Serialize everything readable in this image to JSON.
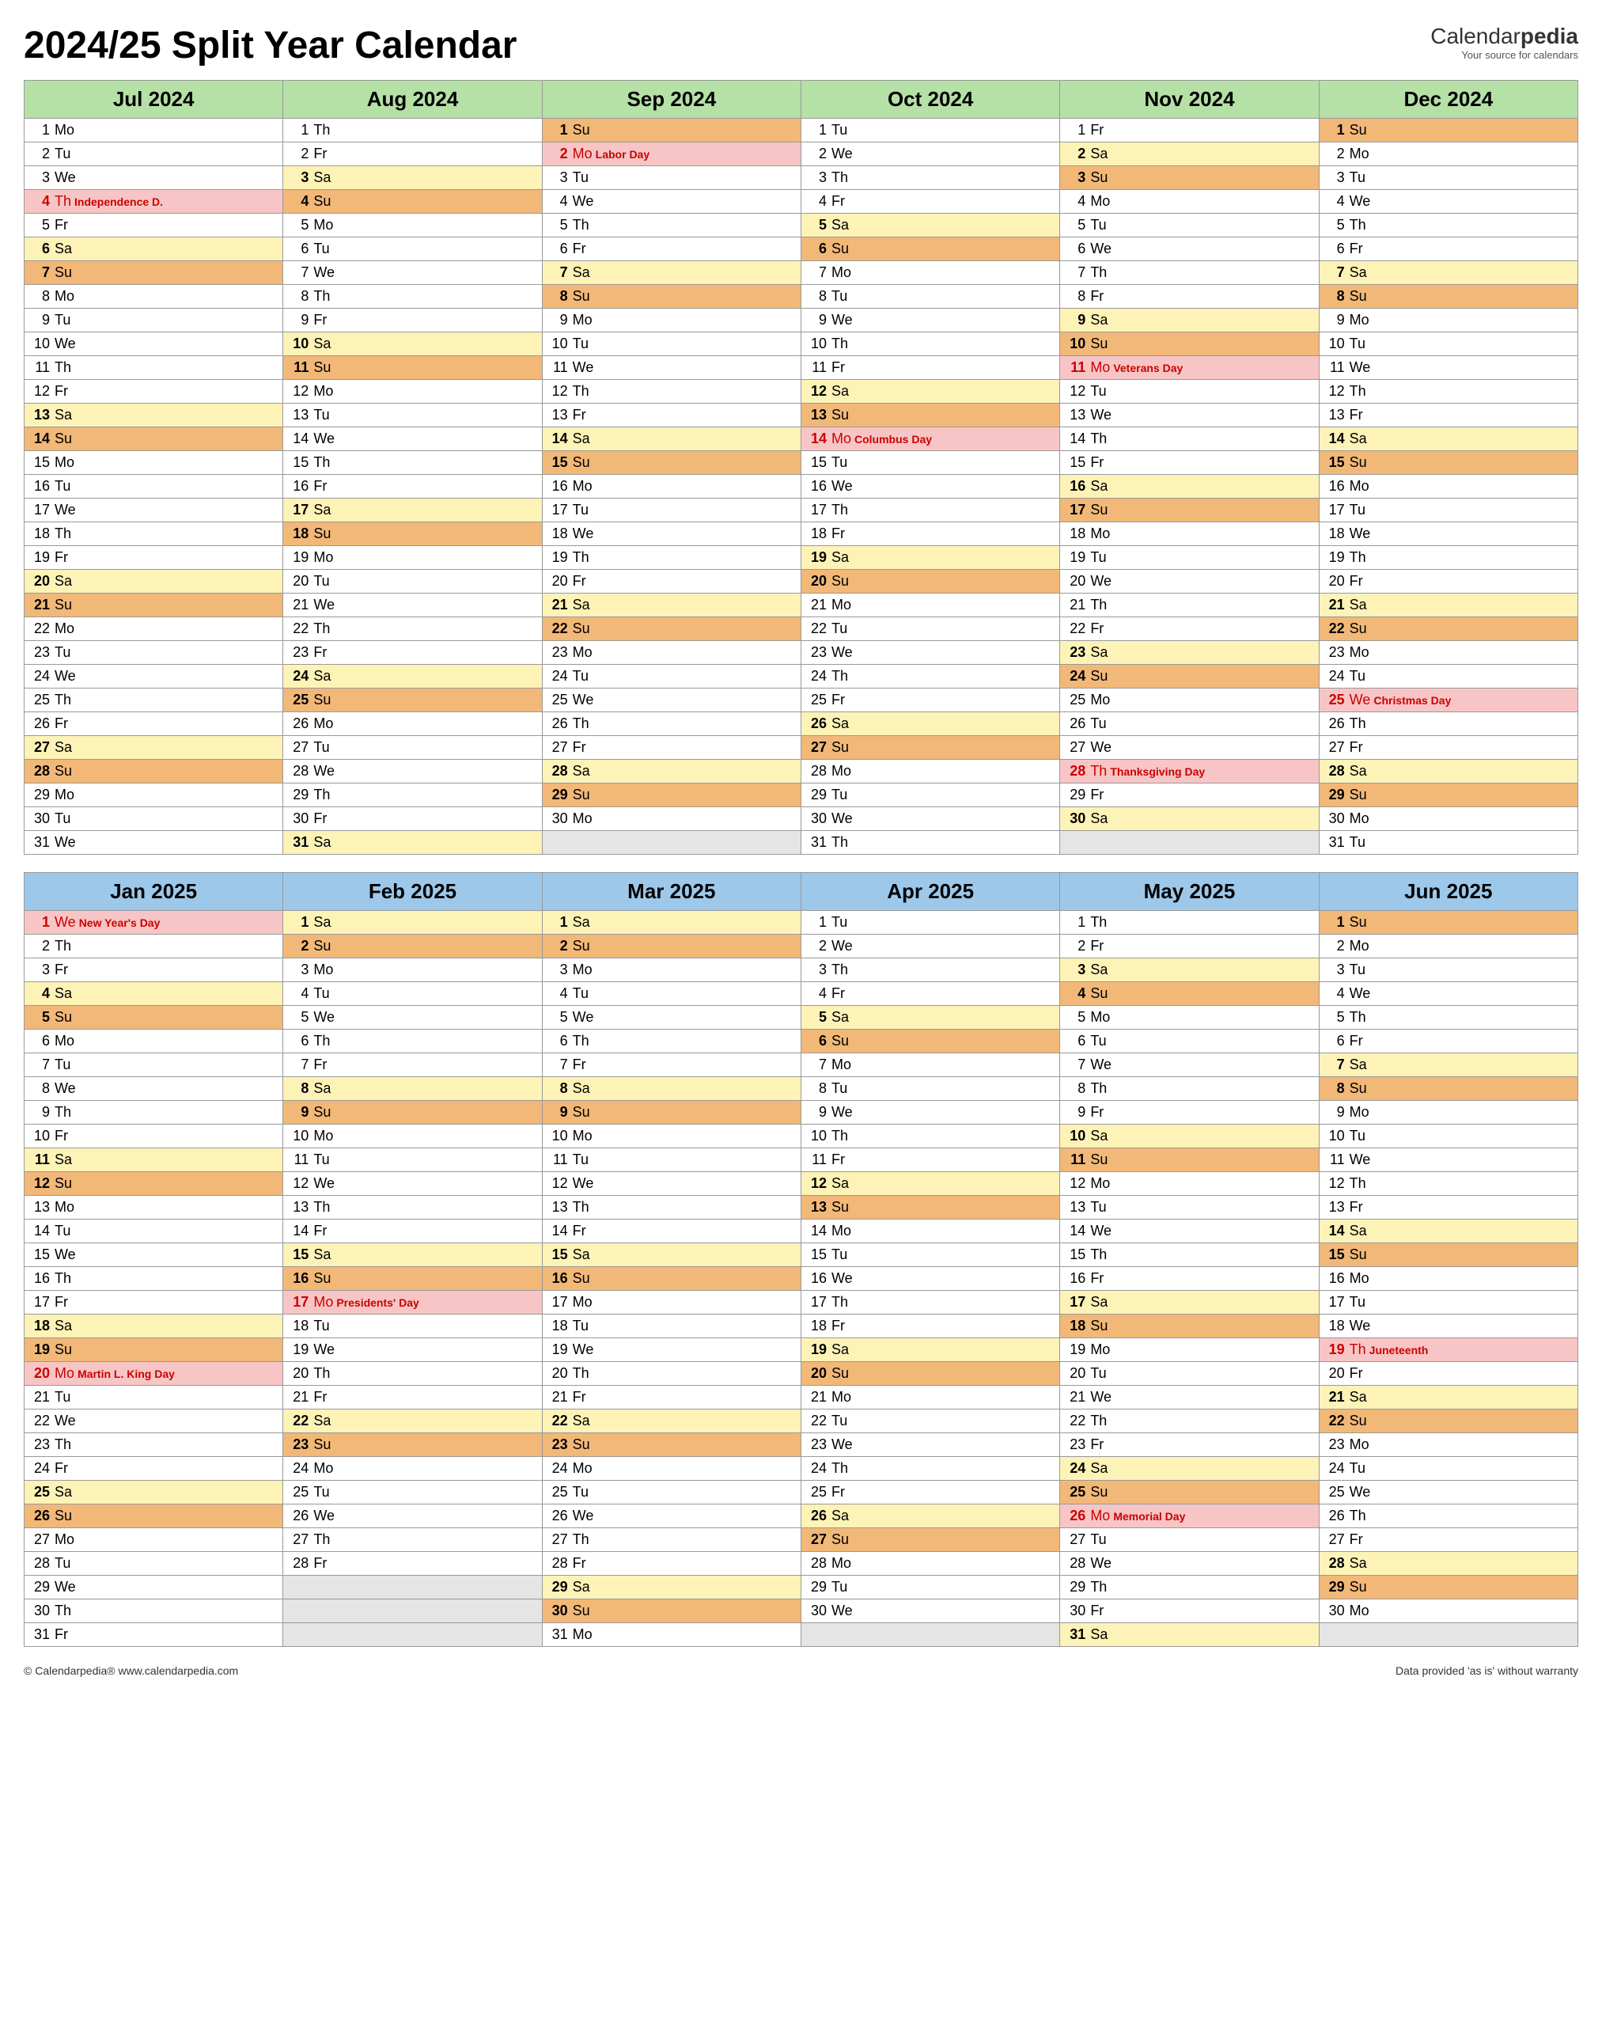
{
  "title": "2024/25 Split Year Calendar",
  "brand_name_a": "Calendar",
  "brand_name_b": "pedia",
  "brand_tag": "Your source for calendars",
  "footer_left": "© Calendarpedia®   www.calendarpedia.com",
  "footer_right": "Data provided 'as is' without warranty",
  "dows": [
    "Su",
    "Mo",
    "Tu",
    "We",
    "Th",
    "Fr",
    "Sa"
  ],
  "blocks": [
    {
      "header_class": "hgreen",
      "months": [
        {
          "label": "Jul 2024",
          "days": 31,
          "start": 1
        },
        {
          "label": "Aug 2024",
          "days": 31,
          "start": 4
        },
        {
          "label": "Sep 2024",
          "days": 30,
          "start": 0
        },
        {
          "label": "Oct 2024",
          "days": 31,
          "start": 2
        },
        {
          "label": "Nov 2024",
          "days": 30,
          "start": 5
        },
        {
          "label": "Dec 2024",
          "days": 31,
          "start": 0
        }
      ],
      "holidays": {
        "0": {
          "4": "Independence D."
        },
        "2": {
          "2": "Labor Day"
        },
        "3": {
          "14": "Columbus Day"
        },
        "4": {
          "11": "Veterans Day",
          "28": "Thanksgiving Day"
        },
        "5": {
          "25": "Christmas Day"
        }
      }
    },
    {
      "header_class": "hblue",
      "months": [
        {
          "label": "Jan 2025",
          "days": 31,
          "start": 3
        },
        {
          "label": "Feb 2025",
          "days": 28,
          "start": 6
        },
        {
          "label": "Mar 2025",
          "days": 31,
          "start": 6
        },
        {
          "label": "Apr 2025",
          "days": 30,
          "start": 2
        },
        {
          "label": "May 2025",
          "days": 31,
          "start": 4
        },
        {
          "label": "Jun 2025",
          "days": 30,
          "start": 0
        }
      ],
      "holidays": {
        "0": {
          "1": "New Year's Day",
          "20": "Martin L. King Day"
        },
        "1": {
          "17": "Presidents' Day"
        },
        "4": {
          "26": "Memorial Day"
        },
        "5": {
          "19": "Juneteenth"
        }
      }
    }
  ],
  "colors": {
    "header_green": "#b5e0a6",
    "header_blue": "#9dc8ea",
    "saturday": "#fdf3b7",
    "sunday": "#f2b878",
    "holiday": "#f7c5c5",
    "holiday_text": "#c00000",
    "empty": "#e5e5e5",
    "border": "#999999"
  }
}
